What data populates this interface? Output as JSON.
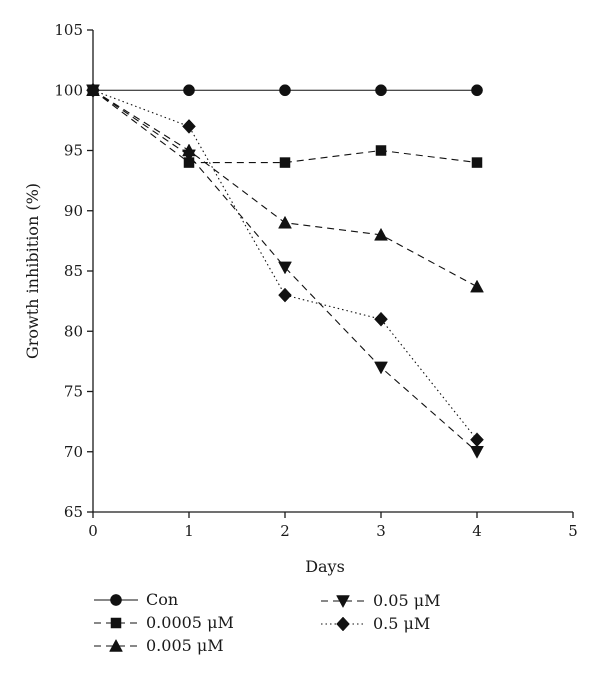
{
  "chart_data": {
    "type": "line",
    "title": "",
    "xlabel": "Days",
    "ylabel": "Growth inhibition (%)",
    "xlim": [
      0,
      5
    ],
    "ylim": [
      65,
      105
    ],
    "xticks": [
      "0",
      "1",
      "2",
      "3",
      "4",
      "5"
    ],
    "yticks": [
      "65",
      "70",
      "75",
      "80",
      "85",
      "90",
      "95",
      "100",
      "105"
    ],
    "grid": false,
    "legend_position": "bottom",
    "x": [
      0,
      1,
      2,
      3,
      4
    ],
    "series": [
      {
        "name": "Con",
        "marker": "circle",
        "dash": "solid",
        "values": [
          100,
          100,
          100,
          100,
          100
        ]
      },
      {
        "name": "0.0005 μM",
        "marker": "square",
        "dash": "dashed",
        "values": [
          100,
          94,
          94,
          95,
          94
        ]
      },
      {
        "name": "0.005 μM",
        "marker": "triangle-up",
        "dash": "dashed",
        "values": [
          100,
          95,
          89,
          88,
          83.7
        ]
      },
      {
        "name": "0.05 μM",
        "marker": "triangle-down",
        "dash": "dashed",
        "values": [
          100,
          94.6,
          85.3,
          77,
          70
        ]
      },
      {
        "name": "0.5 μM",
        "marker": "diamond",
        "dash": "dotted",
        "values": [
          100,
          97,
          83,
          81,
          71
        ]
      }
    ]
  }
}
